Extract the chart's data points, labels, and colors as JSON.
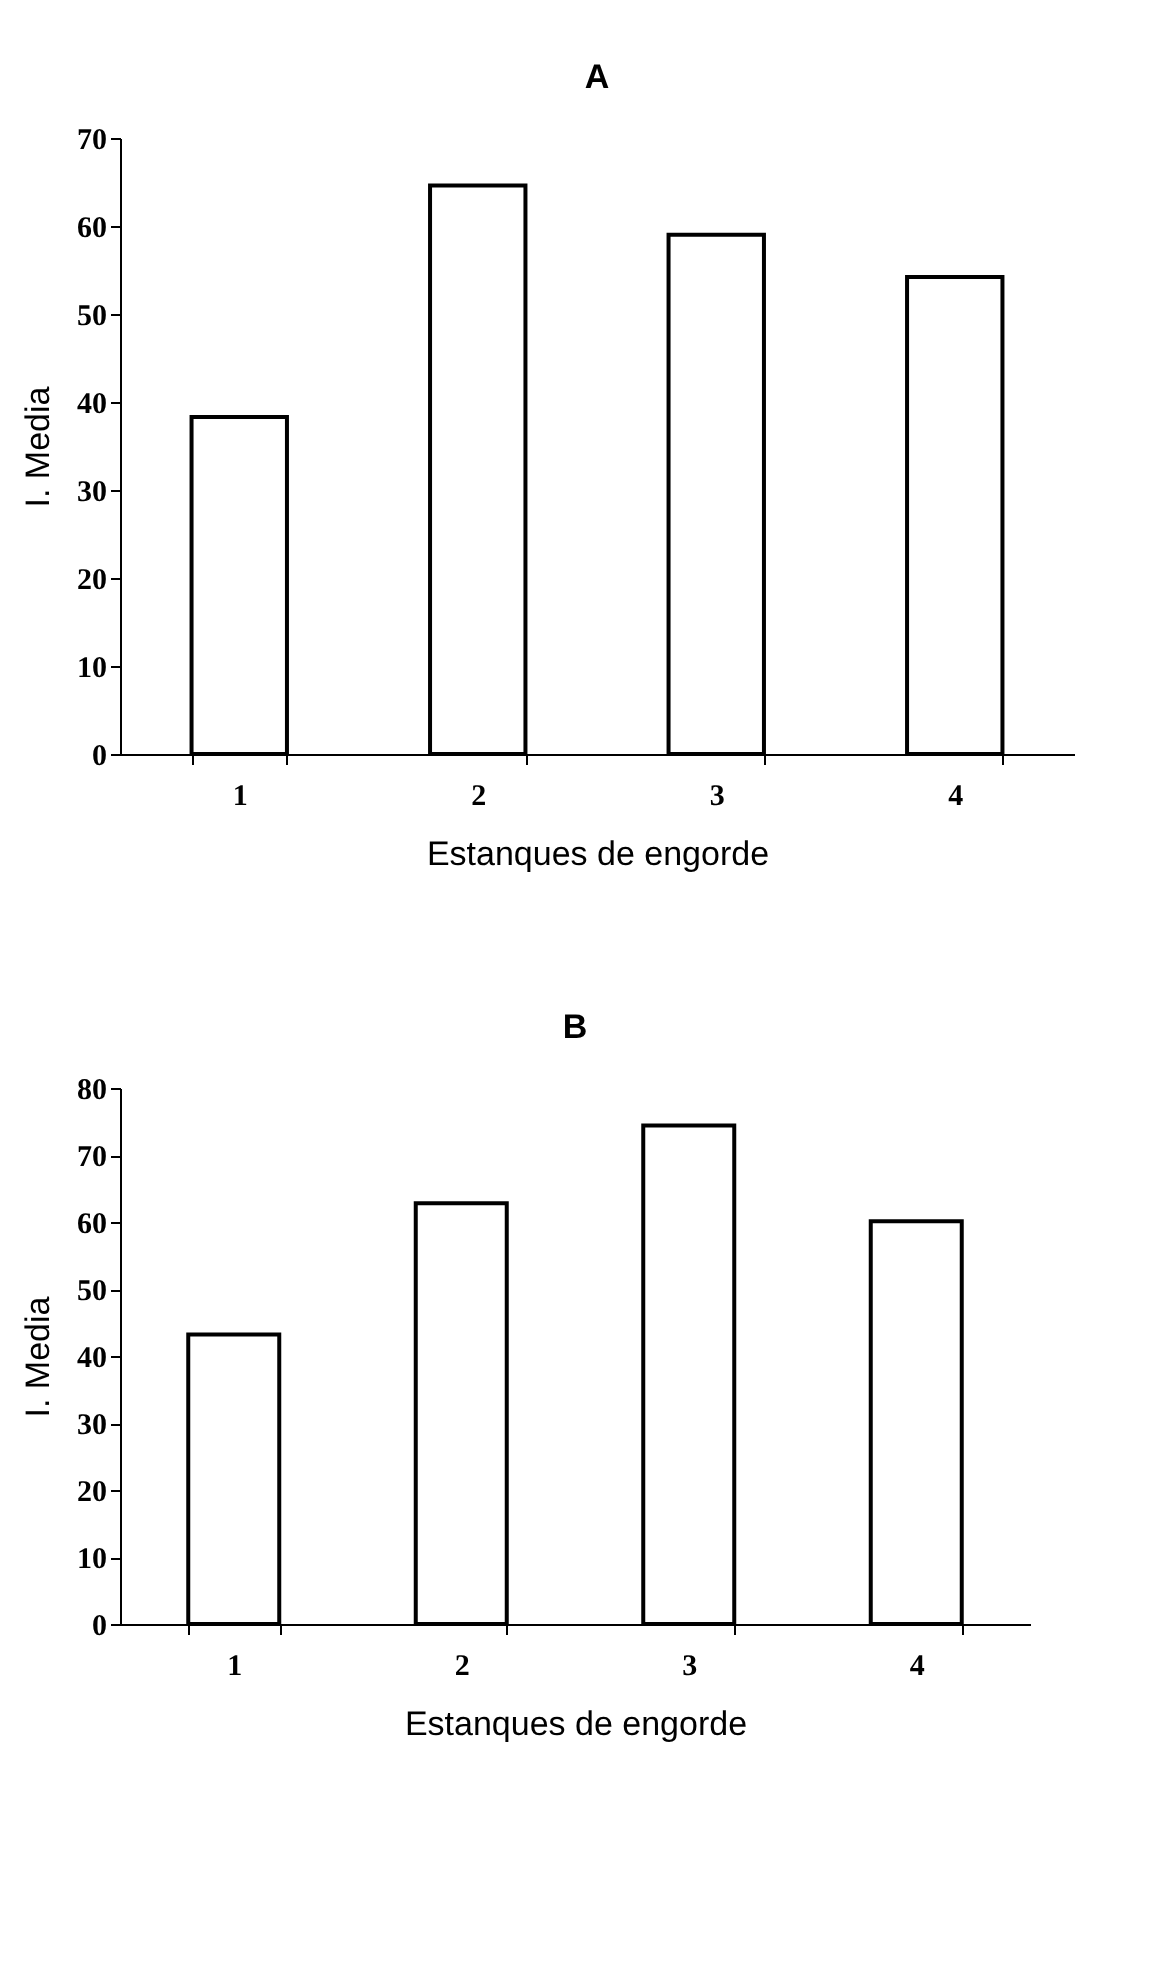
{
  "chart_data": [
    {
      "type": "bar",
      "title": "A",
      "xlabel": "Estanques de engorde",
      "ylabel": "I. Media",
      "categories": [
        "1",
        "2",
        "3",
        "4"
      ],
      "values": [
        38.3,
        64.6,
        59.0,
        54.2
      ],
      "color": "#ffffff",
      "ylim": [
        0,
        70
      ],
      "yticks": [
        0,
        10,
        20,
        30,
        40,
        50,
        60,
        70
      ],
      "grid": false
    },
    {
      "type": "bar",
      "title": "B",
      "xlabel": "Estanques de engorde",
      "ylabel": "I. Media",
      "categories": [
        "1",
        "2",
        "3",
        "4"
      ],
      "values": [
        43.2,
        62.8,
        74.4,
        60.1
      ],
      "color": "#ffffff",
      "ylim": [
        0,
        80
      ],
      "yticks": [
        0,
        10,
        20,
        30,
        40,
        50,
        60,
        70,
        80
      ],
      "grid": false
    }
  ]
}
